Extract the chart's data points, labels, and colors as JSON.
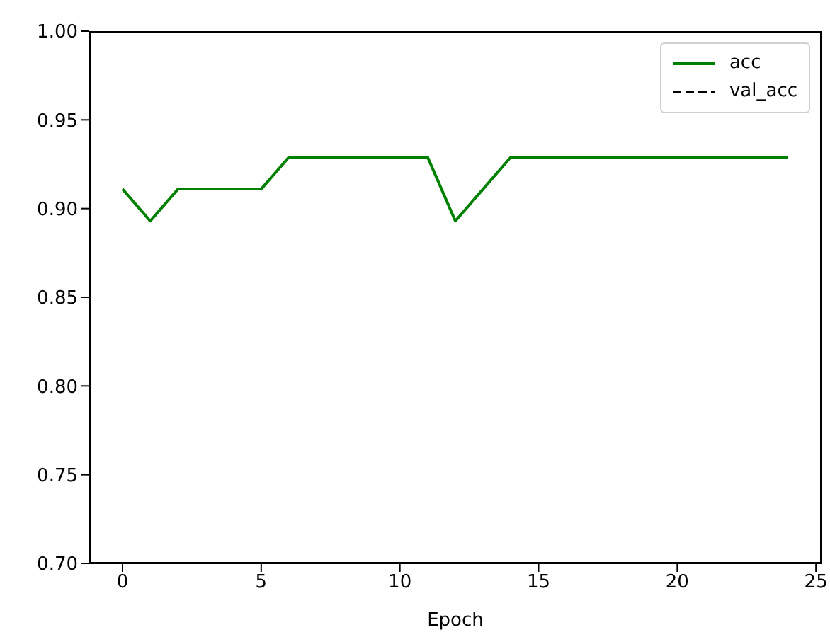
{
  "chart_data": {
    "type": "line",
    "xlabel": "Epoch",
    "x": [
      0,
      1,
      2,
      3,
      4,
      5,
      6,
      7,
      8,
      9,
      10,
      11,
      12,
      13,
      14,
      15,
      16,
      17,
      18,
      19,
      20,
      21,
      22,
      23,
      24
    ],
    "series": [
      {
        "name": "acc",
        "color": "#008000",
        "line_style": "solid",
        "values": [
          0.911,
          0.893,
          0.911,
          0.911,
          0.911,
          0.911,
          0.929,
          0.929,
          0.929,
          0.929,
          0.929,
          0.929,
          0.893,
          0.911,
          0.929,
          0.929,
          0.929,
          0.929,
          0.929,
          0.929,
          0.929,
          0.929,
          0.929,
          0.929,
          0.929
        ]
      },
      {
        "name": "val_acc",
        "color": "#000000",
        "line_style": "dashed",
        "values": [
          null,
          null,
          null,
          null,
          null,
          null,
          null,
          null,
          null,
          null,
          null,
          null,
          null,
          null,
          null,
          null,
          null,
          null,
          null,
          null,
          null,
          null,
          null,
          null,
          null
        ]
      }
    ],
    "xlim": [
      -1.2,
      25.2
    ],
    "xticks": [
      0,
      5,
      10,
      15,
      20,
      25
    ],
    "ylim": [
      0.7,
      1.0
    ],
    "yticks": [
      {
        "value": 0.7,
        "label": "0.70"
      },
      0.75,
      {
        "value": 0.8,
        "label": "0.80"
      },
      0.85,
      {
        "value": 0.9,
        "label": "0.90"
      },
      0.95,
      {
        "value": 1.0,
        "label": "1.00"
      }
    ],
    "grid": false,
    "legend": "top right",
    "marker": "none"
  }
}
